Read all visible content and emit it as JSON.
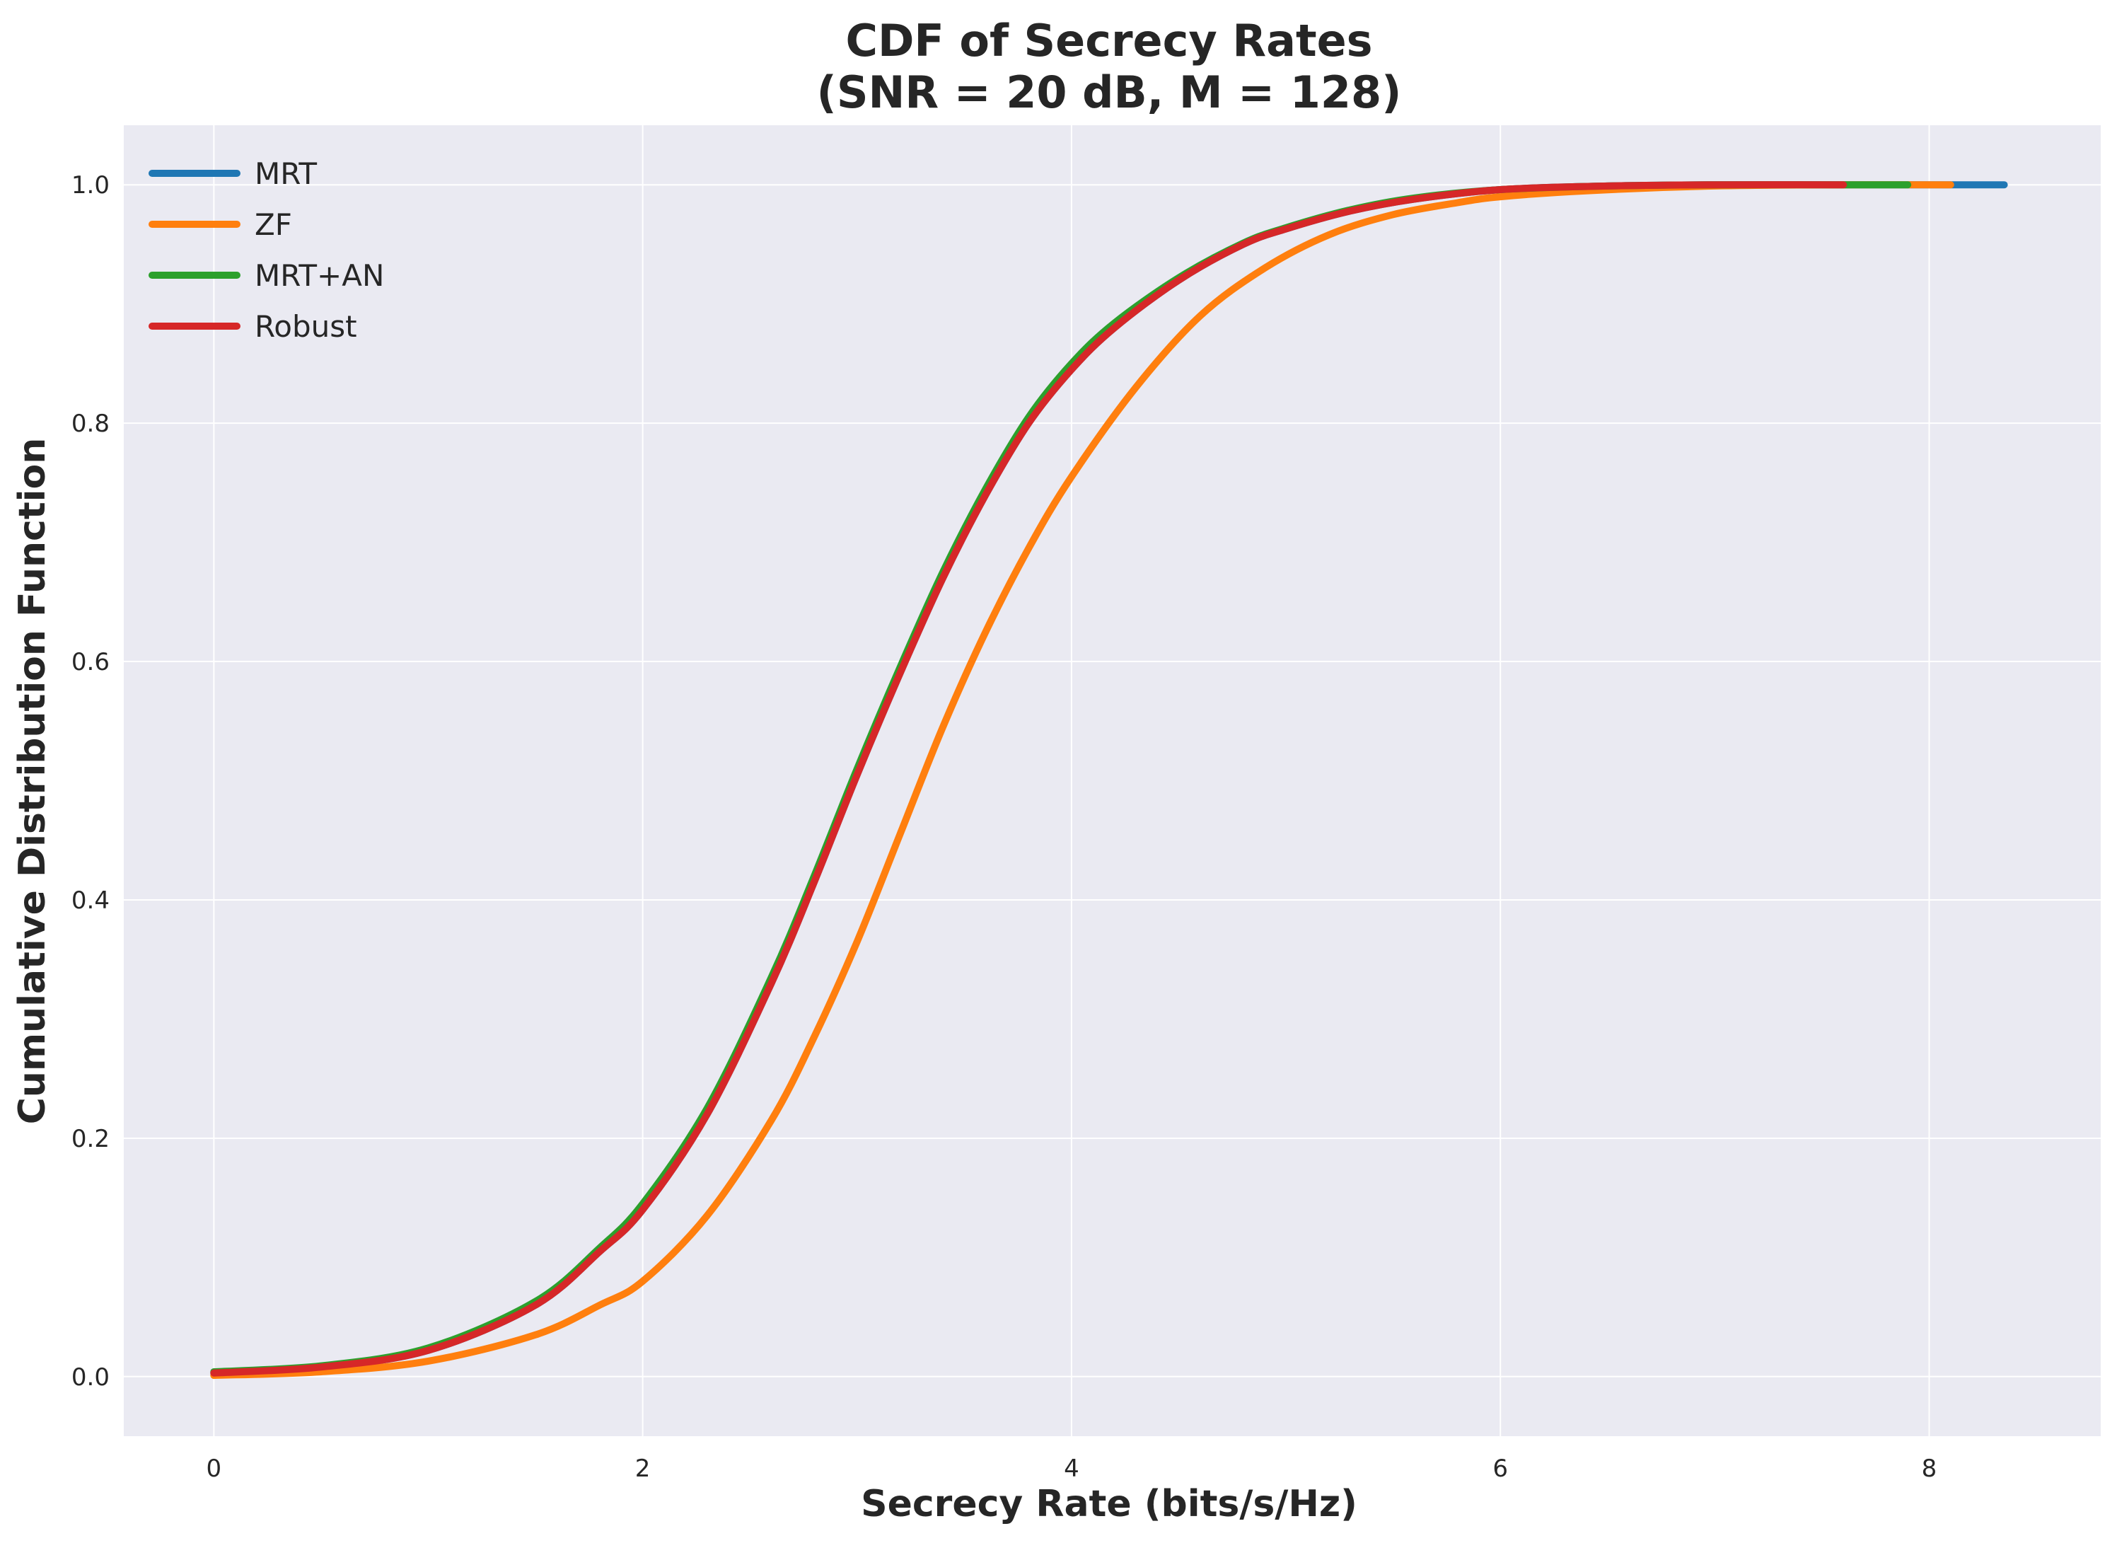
{
  "chart_data": {
    "type": "line",
    "title": [
      "CDF of Secrecy Rates",
      "(SNR = 20 dB, M = 128)"
    ],
    "xlabel": "Secrecy Rate (bits/s/Hz)",
    "ylabel": "Cumulative Distribution Function",
    "xlim": [
      -0.42,
      8.8
    ],
    "ylim": [
      -0.05,
      1.05
    ],
    "xticks": [
      0,
      2,
      4,
      6,
      8
    ],
    "yticks": [
      0.0,
      0.2,
      0.4,
      0.6,
      0.8,
      1.0
    ],
    "xtick_labels": [
      "0",
      "2",
      "4",
      "6",
      "8"
    ],
    "ytick_labels": [
      "0.0",
      "0.2",
      "0.4",
      "0.6",
      "0.8",
      "1.0"
    ],
    "grid": true,
    "legend_position": "top-left",
    "series": [
      {
        "name": "MRT",
        "color": "#1f77b4",
        "x": [
          0,
          0.5,
          1.0,
          1.5,
          1.8,
          2.0,
          2.3,
          2.6,
          2.8,
          3.0,
          3.2,
          3.4,
          3.6,
          3.8,
          4.0,
          4.2,
          4.5,
          4.8,
          5.0,
          5.3,
          5.6,
          6.0,
          6.5,
          7.0,
          7.6,
          8.35
        ],
        "y": [
          0.003,
          0.008,
          0.022,
          0.06,
          0.105,
          0.14,
          0.22,
          0.33,
          0.415,
          0.505,
          0.59,
          0.67,
          0.74,
          0.8,
          0.845,
          0.88,
          0.92,
          0.95,
          0.963,
          0.978,
          0.988,
          0.996,
          0.999,
          1.0,
          1.0,
          1.0
        ]
      },
      {
        "name": "ZF",
        "color": "#ff7f0e",
        "x": [
          0,
          0.5,
          1.0,
          1.5,
          1.8,
          2.0,
          2.3,
          2.6,
          2.8,
          3.0,
          3.2,
          3.4,
          3.6,
          3.8,
          4.0,
          4.3,
          4.6,
          4.9,
          5.2,
          5.5,
          5.8,
          6.0,
          6.4,
          7.0,
          7.6,
          8.1
        ],
        "y": [
          0.001,
          0.004,
          0.013,
          0.035,
          0.06,
          0.08,
          0.135,
          0.215,
          0.285,
          0.365,
          0.455,
          0.545,
          0.625,
          0.695,
          0.755,
          0.83,
          0.89,
          0.93,
          0.958,
          0.975,
          0.985,
          0.99,
          0.995,
          0.999,
          1.0,
          1.0
        ]
      },
      {
        "name": "MRT+AN",
        "color": "#2ca02c",
        "x": [
          0,
          0.5,
          1.0,
          1.5,
          1.8,
          2.0,
          2.3,
          2.6,
          2.8,
          3.0,
          3.2,
          3.4,
          3.6,
          3.8,
          4.0,
          4.2,
          4.5,
          4.8,
          5.0,
          5.3,
          5.6,
          6.0,
          6.5,
          7.0,
          7.6,
          7.9
        ],
        "y": [
          0.004,
          0.009,
          0.024,
          0.063,
          0.108,
          0.145,
          0.225,
          0.335,
          0.42,
          0.51,
          0.595,
          0.675,
          0.745,
          0.805,
          0.85,
          0.884,
          0.922,
          0.951,
          0.964,
          0.979,
          0.989,
          0.996,
          0.999,
          1.0,
          1.0,
          1.0
        ]
      },
      {
        "name": "Robust",
        "color": "#d62728",
        "x": [
          0,
          0.5,
          1.0,
          1.5,
          1.8,
          2.0,
          2.3,
          2.6,
          2.8,
          3.0,
          3.2,
          3.4,
          3.6,
          3.8,
          4.0,
          4.2,
          4.5,
          4.8,
          5.0,
          5.3,
          5.6,
          6.0,
          6.5,
          7.0,
          7.6
        ],
        "y": [
          0.003,
          0.008,
          0.022,
          0.06,
          0.105,
          0.14,
          0.22,
          0.33,
          0.415,
          0.505,
          0.59,
          0.67,
          0.74,
          0.8,
          0.845,
          0.88,
          0.92,
          0.95,
          0.963,
          0.978,
          0.988,
          0.996,
          0.999,
          1.0,
          1.0
        ]
      }
    ]
  }
}
